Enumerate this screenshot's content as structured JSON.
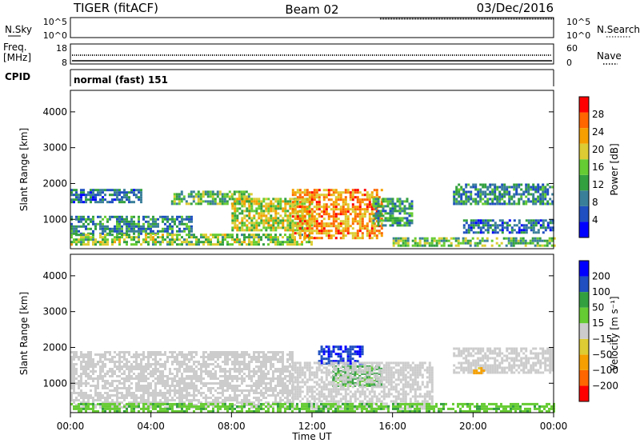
{
  "header": {
    "radar": "TIGER (fitACF)",
    "beam": "Beam 02",
    "date": "03/Dec/2016"
  },
  "nsky_panel": {
    "left_label": "N.Sky",
    "right_label": "N.Search",
    "left_ticks": [
      "10^5",
      "10^0"
    ],
    "right_ticks": [
      "10^5",
      "10^0"
    ]
  },
  "freq_panel": {
    "left_label_1": "Freq.",
    "left_label_2": "[MHz]",
    "right_label": "Nave",
    "left_ticks": [
      "18",
      "8"
    ],
    "right_ticks": [
      "60",
      "0"
    ],
    "cpid_label": "CPID",
    "cpid_value": "normal (fast) 151"
  },
  "power_panel": {
    "ylabel": "Slant Range [km]",
    "yticks": [
      "4000",
      "3000",
      "2000",
      "1000"
    ],
    "colorbar_label": "Power [dB]",
    "colorbar_ticks": [
      "28",
      "24",
      "20",
      "16",
      "12",
      "8",
      "4"
    ],
    "colors": [
      "#0000ff",
      "#1f4fc0",
      "#3a7f9a",
      "#33a040",
      "#66cc33",
      "#ddcc33",
      "#f5a000",
      "#ff6600",
      "#ff0000"
    ]
  },
  "velocity_panel": {
    "ylabel": "Slant Range [km]",
    "yticks": [
      "4000",
      "3000",
      "2000",
      "1000"
    ],
    "colorbar_label": "Velocity [m s⁻¹]",
    "colorbar_ticks": [
      "200",
      "100",
      "50",
      "15",
      "−15",
      "−50",
      "−100",
      "−200"
    ],
    "colors": [
      "#ff0000",
      "#ff6600",
      "#f5a000",
      "#ddcc33",
      "#cccccc",
      "#66cc33",
      "#33a040",
      "#1f4fc0",
      "#0000ff"
    ]
  },
  "x_axis": {
    "ticks": [
      "00:00",
      "04:00",
      "08:00",
      "12:00",
      "16:00",
      "20:00",
      "00:00"
    ],
    "label": "Time UT"
  },
  "chart_data": {
    "type": "heatmap",
    "title": "TIGER (fitACF)",
    "xlabel": "Time UT",
    "ylabel": "Slant Range [km]",
    "xlim_hours": [
      0,
      24
    ],
    "ylim_km": [
      180,
      4600
    ],
    "power_bands": [
      {
        "range_km": [
          1500,
          1850
        ],
        "t_hours": [
          0,
          3.5
        ],
        "power_db": 8
      },
      {
        "range_km": [
          1450,
          1800
        ],
        "t_hours": [
          5,
          9
        ],
        "power_db": 14
      },
      {
        "range_km": [
          600,
          1100
        ],
        "t_hours": [
          0,
          6
        ],
        "power_db": 10
      },
      {
        "range_km": [
          300,
          600
        ],
        "t_hours": [
          0,
          12
        ],
        "power_db": 16
      },
      {
        "range_km": [
          700,
          1600
        ],
        "t_hours": [
          8,
          12
        ],
        "power_db": 18
      },
      {
        "range_km": [
          500,
          1850
        ],
        "t_hours": [
          11,
          15.5
        ],
        "power_db": 24
      },
      {
        "range_km": [
          800,
          1600
        ],
        "t_hours": [
          15,
          17
        ],
        "power_db": 12
      },
      {
        "range_km": [
          1450,
          2000
        ],
        "t_hours": [
          19,
          24
        ],
        "power_db": 10
      },
      {
        "range_km": [
          650,
          1000
        ],
        "t_hours": [
          19.5,
          24
        ],
        "power_db": 8
      },
      {
        "range_km": [
          250,
          500
        ],
        "t_hours": [
          16,
          24
        ],
        "power_db": 14
      }
    ],
    "velocity_bands": [
      {
        "range_km": [
          300,
          1900
        ],
        "t_hours": [
          0,
          11
        ],
        "velocity_ms": 0
      },
      {
        "range_km": [
          1550,
          2050
        ],
        "t_hours": [
          12.3,
          14.5
        ],
        "velocity_ms": 200
      },
      {
        "range_km": [
          900,
          1500
        ],
        "t_hours": [
          13,
          15.5
        ],
        "velocity_ms": 60
      },
      {
        "range_km": [
          300,
          1600
        ],
        "t_hours": [
          11,
          18
        ],
        "velocity_ms": 0
      },
      {
        "range_km": [
          1300,
          2000
        ],
        "t_hours": [
          19,
          24
        ],
        "velocity_ms": 0
      },
      {
        "range_km": [
          1250,
          1450
        ],
        "t_hours": [
          20,
          20.7
        ],
        "velocity_ms": -60
      },
      {
        "range_km": [
          200,
          450
        ],
        "t_hours": [
          0,
          24
        ],
        "velocity_ms": 40
      }
    ]
  }
}
